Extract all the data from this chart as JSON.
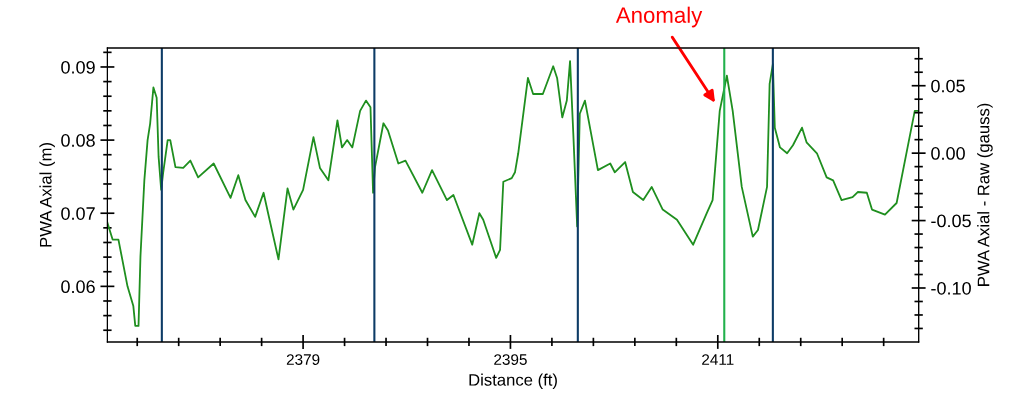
{
  "chart_data": {
    "type": "line",
    "xlabel": "Distance (ft)",
    "ylabel": "PWA Axial (m)",
    "y2label": "PWA Axial - Raw (gauss)",
    "xlim": [
      2363.9,
      2426.5
    ],
    "xticks": [
      {
        "value": 2366.2,
        "label": null
      },
      {
        "value": 2369.4,
        "label": null
      },
      {
        "value": 2372.6,
        "label": null
      },
      {
        "value": 2375.8,
        "label": null
      },
      2379,
      {
        "value": 2382.2,
        "label": null
      },
      {
        "value": 2385.4,
        "label": null
      },
      {
        "value": 2388.6,
        "label": null
      },
      {
        "value": 2391.8,
        "label": null
      },
      2395,
      {
        "value": 2398.2,
        "label": null
      },
      {
        "value": 2401.4,
        "label": null
      },
      {
        "value": 2404.6,
        "label": null
      },
      {
        "value": 2407.8,
        "label": null
      },
      2411,
      {
        "value": 2414.2,
        "label": null
      },
      {
        "value": 2417.4,
        "label": null
      },
      {
        "value": 2420.6,
        "label": null
      },
      {
        "value": 2423.8,
        "label": null
      }
    ],
    "ylim": [
      0.0524,
      0.0926
    ],
    "yticks": [
      {
        "value": 0.054,
        "label": null
      },
      {
        "value": 0.056,
        "label": null
      },
      {
        "value": 0.058,
        "label": null
      },
      0.06,
      {
        "value": 0.062,
        "label": null
      },
      {
        "value": 0.064,
        "label": null
      },
      {
        "value": 0.066,
        "label": null
      },
      {
        "value": 0.068,
        "label": null
      },
      0.07,
      {
        "value": 0.072,
        "label": null
      },
      {
        "value": 0.074,
        "label": null
      },
      {
        "value": 0.076,
        "label": null
      },
      {
        "value": 0.078,
        "label": null
      },
      0.08,
      {
        "value": 0.082,
        "label": null
      },
      {
        "value": 0.084,
        "label": null
      },
      {
        "value": 0.086,
        "label": null
      },
      {
        "value": 0.088,
        "label": null
      },
      0.09,
      {
        "value": 0.092,
        "label": null
      }
    ],
    "y2lim": [
      -0.14,
      0.078
    ],
    "y2ticks": [
      {
        "value": -0.13,
        "label": null
      },
      {
        "value": -0.12,
        "label": null
      },
      {
        "value": -0.11,
        "label": null
      },
      {
        "value": -0.1,
        "label": "-0.10"
      },
      {
        "value": -0.09,
        "label": null
      },
      {
        "value": -0.08,
        "label": null
      },
      {
        "value": -0.07,
        "label": null
      },
      {
        "value": -0.06,
        "label": null
      },
      {
        "value": -0.05,
        "label": "-0.05"
      },
      {
        "value": -0.04,
        "label": null
      },
      {
        "value": -0.03,
        "label": null
      },
      {
        "value": -0.02,
        "label": null
      },
      {
        "value": -0.01,
        "label": null
      },
      {
        "value": 0.0,
        "label": "0.00"
      },
      {
        "value": 0.01,
        "label": null
      },
      {
        "value": 0.02,
        "label": null
      },
      {
        "value": 0.03,
        "label": null
      },
      {
        "value": 0.04,
        "label": null
      },
      0.05,
      {
        "value": 0.06,
        "label": null
      },
      {
        "value": 0.07,
        "label": null
      }
    ],
    "grid": false,
    "legend": false,
    "marker": "none",
    "line_style": "solid",
    "series": [
      {
        "color": "#1f8f1f",
        "x": [
          2363.9,
          2364.3,
          2364.75,
          2365.45,
          2365.9,
          2366.05,
          2366.3,
          2366.45,
          2366.75,
          2367.0,
          2367.2,
          2367.45,
          2367.7,
          2367.85,
          2368.05,
          2368.2,
          2368.55,
          2368.75,
          2369.15,
          2369.75,
          2370.3,
          2370.9,
          2372.1,
          2373.4,
          2374.0,
          2374.55,
          2375.3,
          2375.95,
          2376.3,
          2377.1,
          2377.8,
          2378.25,
          2379.0,
          2379.8,
          2380.3,
          2380.95,
          2381.65,
          2382.0,
          2382.4,
          2382.8,
          2383.4,
          2383.85,
          2384.2,
          2384.4,
          2384.55,
          2385.2,
          2385.55,
          2386.35,
          2386.9,
          2388.2,
          2388.95,
          2390.1,
          2390.6,
          2392.05,
          2392.6,
          2392.9,
          2393.9,
          2394.2,
          2394.45,
          2395.1,
          2395.35,
          2395.6,
          2396.35,
          2396.75,
          2397.5,
          2398.3,
          2398.6,
          2399.0,
          2399.35,
          2399.6,
          2399.85,
          2400.15,
          2400.35,
          2400.75,
          2401.75,
          2402.7,
          2403.05,
          2403.85,
          2404.45,
          2405.25,
          2405.9,
          2406.75,
          2407.85,
          2409.1,
          2410.15,
          2410.6,
          2411.15,
          2411.7,
          2412.15,
          2412.85,
          2413.7,
          2414.1,
          2414.8,
          2415.0,
          2415.25,
          2415.4,
          2415.8,
          2416.35,
          2416.8,
          2417.5,
          2417.85,
          2418.65,
          2419.4,
          2419.9,
          2420.55,
          2421.4,
          2421.8,
          2422.5,
          2422.9,
          2423.9,
          2424.8,
          2425.6,
          2426.2,
          2426.45
        ],
        "values": [
          0.0687,
          0.0664,
          0.0664,
          0.06,
          0.0573,
          0.0546,
          0.0546,
          0.0641,
          0.0745,
          0.08,
          0.0823,
          0.0872,
          0.0858,
          0.0777,
          0.0732,
          0.0755,
          0.08,
          0.08,
          0.0763,
          0.0762,
          0.0772,
          0.0749,
          0.0768,
          0.0721,
          0.0752,
          0.0718,
          0.0695,
          0.0728,
          0.07,
          0.0637,
          0.0734,
          0.0705,
          0.0732,
          0.0804,
          0.0762,
          0.0745,
          0.0827,
          0.079,
          0.08,
          0.079,
          0.084,
          0.0854,
          0.0845,
          0.0728,
          0.0763,
          0.0823,
          0.0813,
          0.0768,
          0.0772,
          0.0728,
          0.0759,
          0.0718,
          0.0725,
          0.0657,
          0.07,
          0.0691,
          0.0639,
          0.065,
          0.0743,
          0.0748,
          0.0756,
          0.0782,
          0.0885,
          0.0863,
          0.0863,
          0.0901,
          0.0885,
          0.0831,
          0.0854,
          0.0908,
          0.0809,
          0.0682,
          0.0836,
          0.0854,
          0.0759,
          0.0768,
          0.0756,
          0.077,
          0.0729,
          0.0718,
          0.0736,
          0.0705,
          0.0691,
          0.0657,
          0.07,
          0.0718,
          0.084,
          0.0888,
          0.084,
          0.0736,
          0.0668,
          0.0677,
          0.0736,
          0.0877,
          0.0904,
          0.0817,
          0.079,
          0.0782,
          0.0793,
          0.0817,
          0.0797,
          0.0782,
          0.0749,
          0.0745,
          0.0718,
          0.0722,
          0.0729,
          0.0728,
          0.0705,
          0.0698,
          0.0714,
          0.0786,
          0.084,
          0.084
        ]
      }
    ],
    "ref_lines": [
      {
        "axis": "x",
        "value": 2368.1,
        "color": "#0d3b66"
      },
      {
        "axis": "x",
        "value": 2384.5,
        "color": "#0d3b66"
      },
      {
        "axis": "x",
        "value": 2400.2,
        "color": "#0d3b66"
      },
      {
        "axis": "x",
        "value": 2411.5,
        "color": "#22b14c"
      },
      {
        "axis": "x",
        "value": 2415.25,
        "color": "#0d3b66"
      }
    ],
    "annotations": [
      "Anomaly"
    ]
  }
}
